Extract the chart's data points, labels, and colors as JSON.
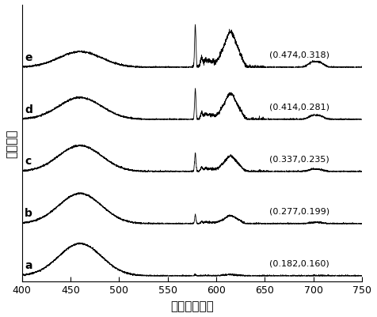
{
  "title": "",
  "xlabel": "波长（纳米）",
  "ylabel": "相对强度",
  "xlim": [
    400,
    750
  ],
  "ylim": [
    -0.1,
    5.2
  ],
  "labels": [
    "a",
    "b",
    "c",
    "d",
    "e"
  ],
  "coords": [
    "(0.182,0.160)",
    "(0.277,0.199)",
    "(0.337,0.235)",
    "(0.414,0.281)",
    "(0.474,0.318)"
  ],
  "offsets": [
    0.0,
    1.0,
    2.0,
    3.0,
    4.0
  ],
  "background_color": "#ffffff",
  "line_color": "#000000"
}
